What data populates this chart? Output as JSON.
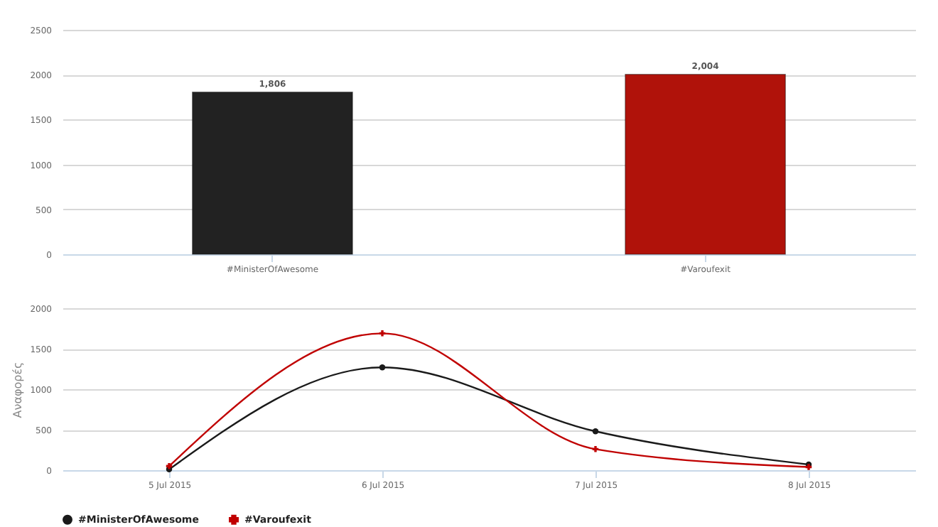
{
  "chart_data": [
    {
      "type": "bar",
      "categories": [
        "#MinisterOfAwesome",
        "#Varoufexit"
      ],
      "values": [
        1806,
        2004
      ],
      "value_labels": [
        "1,806",
        "2,004"
      ],
      "colors": [
        "#222222",
        "#b0120a"
      ],
      "ylim": [
        0,
        2500
      ],
      "yticks": [
        0,
        500,
        1000,
        1500,
        2000,
        2500
      ],
      "grid": "y"
    },
    {
      "type": "line",
      "ylabel": "Αναφορές",
      "categories": [
        "5 Jul 2015",
        "6 Jul 2015",
        "7 Jul 2015",
        "8 Jul 2015"
      ],
      "ylim": [
        0,
        2000
      ],
      "yticks": [
        0,
        500,
        1000,
        1500,
        2000
      ],
      "grid": "y",
      "legend": "bottom",
      "series": [
        {
          "name": "#MinisterOfAwesome",
          "color": "#1a1a1a",
          "marker": "circle",
          "values": [
            10,
            1270,
            480,
            70
          ]
        },
        {
          "name": "#Varoufexit",
          "color": "#c00000",
          "marker": "cross",
          "values": [
            50,
            1690,
            260,
            40
          ]
        }
      ]
    }
  ]
}
